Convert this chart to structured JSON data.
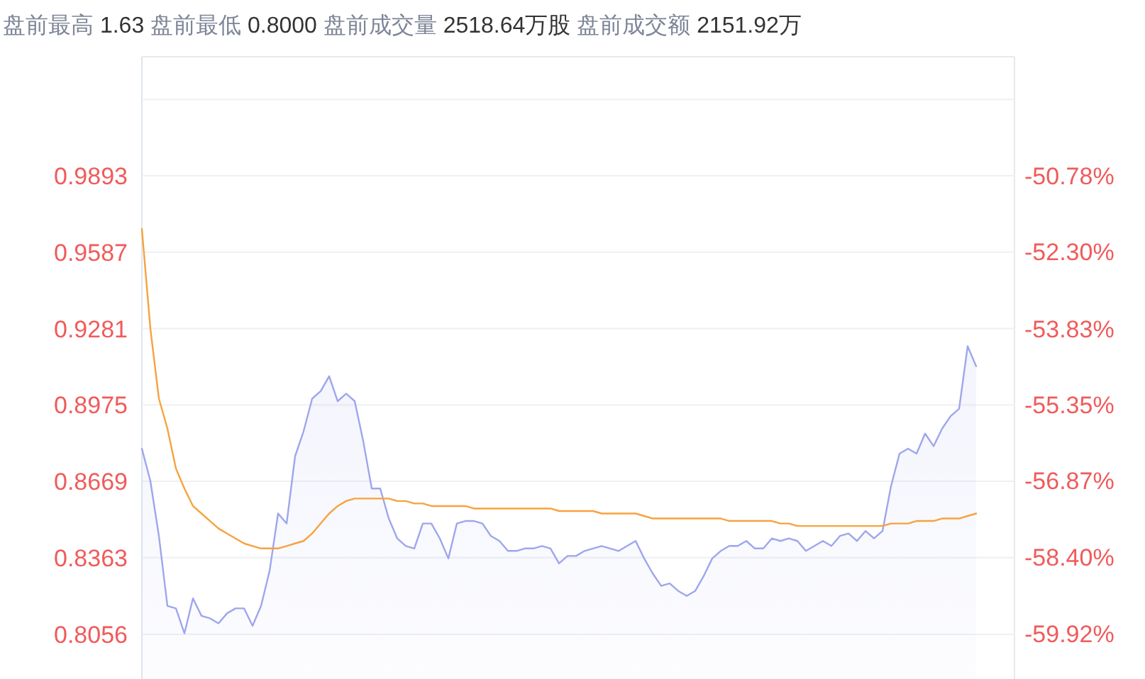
{
  "chart_data": {
    "type": "area",
    "annotations": [
      "盘前最高",
      "1.63",
      "盘前最低",
      "0.8000",
      "盘前成交量",
      "2518.64万股",
      "盘前成交额",
      "2151.92万"
    ],
    "categories": [
      null,
      null,
      null,
      null,
      null,
      null,
      null,
      null,
      null,
      null,
      null,
      null,
      null,
      null,
      null,
      null,
      null,
      null,
      null,
      null,
      null,
      null,
      null,
      null,
      null,
      null,
      null,
      null,
      null,
      null,
      null,
      null,
      null,
      null,
      null,
      null,
      null,
      null,
      null,
      null,
      null,
      null,
      null,
      null,
      null,
      null,
      null,
      null,
      null,
      null,
      null,
      null,
      null,
      null,
      null,
      null,
      null,
      null,
      null,
      null,
      null,
      null,
      null,
      null,
      null,
      null,
      null,
      null,
      null,
      null,
      null,
      null,
      null,
      null,
      null,
      null,
      null,
      null,
      null,
      null,
      null,
      null,
      null,
      null,
      null,
      null,
      null,
      null,
      null,
      null,
      null,
      null,
      null,
      null,
      null,
      null,
      null,
      null,
      null
    ],
    "series": [
      {
        "color": "#9ea6ec",
        "values": [
          0.88,
          0.867,
          0.845,
          0.817,
          0.816,
          0.806,
          0.82,
          0.813,
          0.812,
          0.81,
          0.814,
          0.816,
          0.816,
          0.809,
          0.817,
          0.831,
          0.854,
          0.85,
          0.877,
          0.887,
          0.9,
          0.903,
          0.909,
          0.899,
          0.902,
          0.899,
          0.883,
          0.864,
          0.864,
          0.852,
          0.844,
          0.841,
          0.84,
          0.85,
          0.85,
          0.844,
          0.836,
          0.85,
          0.851,
          0.851,
          0.85,
          0.845,
          0.843,
          0.839,
          0.839,
          0.84,
          0.84,
          0.841,
          0.84,
          0.834,
          0.837,
          0.837,
          0.839,
          0.84,
          0.841,
          0.84,
          0.839,
          0.841,
          0.843,
          0.836,
          0.83,
          0.825,
          0.826,
          0.823,
          0.821,
          0.823,
          0.829,
          0.836,
          0.839,
          0.841,
          0.841,
          0.843,
          0.84,
          0.84,
          0.844,
          0.843,
          0.844,
          0.843,
          0.839,
          0.841,
          0.843,
          0.841,
          0.845,
          0.846,
          0.843,
          0.847,
          0.844,
          0.847,
          0.865,
          0.878,
          0.88,
          0.878,
          0.886,
          0.881,
          0.888,
          0.893,
          0.896,
          0.921,
          0.913
        ]
      },
      {
        "type": "line",
        "color": "#f7a23e",
        "values": [
          0.968,
          0.928,
          0.9,
          0.888,
          0.872,
          0.864,
          0.857,
          0.854,
          0.851,
          0.848,
          0.846,
          0.844,
          0.842,
          0.841,
          0.84,
          0.84,
          0.84,
          0.841,
          0.842,
          0.843,
          0.846,
          0.85,
          0.854,
          0.857,
          0.859,
          0.86,
          0.86,
          0.86,
          0.86,
          0.86,
          0.859,
          0.859,
          0.858,
          0.858,
          0.857,
          0.857,
          0.857,
          0.857,
          0.857,
          0.856,
          0.856,
          0.856,
          0.856,
          0.856,
          0.856,
          0.856,
          0.856,
          0.856,
          0.856,
          0.855,
          0.855,
          0.855,
          0.855,
          0.855,
          0.854,
          0.854,
          0.854,
          0.854,
          0.854,
          0.853,
          0.852,
          0.852,
          0.852,
          0.852,
          0.852,
          0.852,
          0.852,
          0.852,
          0.852,
          0.851,
          0.851,
          0.851,
          0.851,
          0.851,
          0.851,
          0.85,
          0.85,
          0.849,
          0.849,
          0.849,
          0.849,
          0.849,
          0.849,
          0.849,
          0.849,
          0.849,
          0.849,
          0.849,
          0.85,
          0.85,
          0.85,
          0.851,
          0.851,
          0.851,
          0.852,
          0.852,
          0.852,
          0.853,
          0.854
        ]
      }
    ],
    "ylim": [
      0.7877,
      1.037
    ],
    "yticks": [
      {
        "value": 1.0199,
        "label": null
      },
      0.9893,
      0.9587,
      0.9281,
      0.8975,
      0.8669,
      0.8363,
      0.8056
    ],
    "y2lim": [
      -60.83,
      -48.4
    ],
    "y2ticks": [
      {
        "value": -49.26,
        "label": null
      },
      {
        "value": -50.78,
        "label": "-50.78%"
      },
      {
        "value": -52.3,
        "label": "-52.30%"
      },
      {
        "value": -53.83,
        "label": "-53.83%"
      },
      {
        "value": -55.35,
        "label": "-55.35%"
      },
      {
        "value": -56.87,
        "label": "-56.87%"
      },
      {
        "value": -58.4,
        "label": "-58.40%"
      },
      {
        "value": -59.92,
        "label": "-59.92%"
      }
    ],
    "grid": "y",
    "tick_labels": "y"
  }
}
